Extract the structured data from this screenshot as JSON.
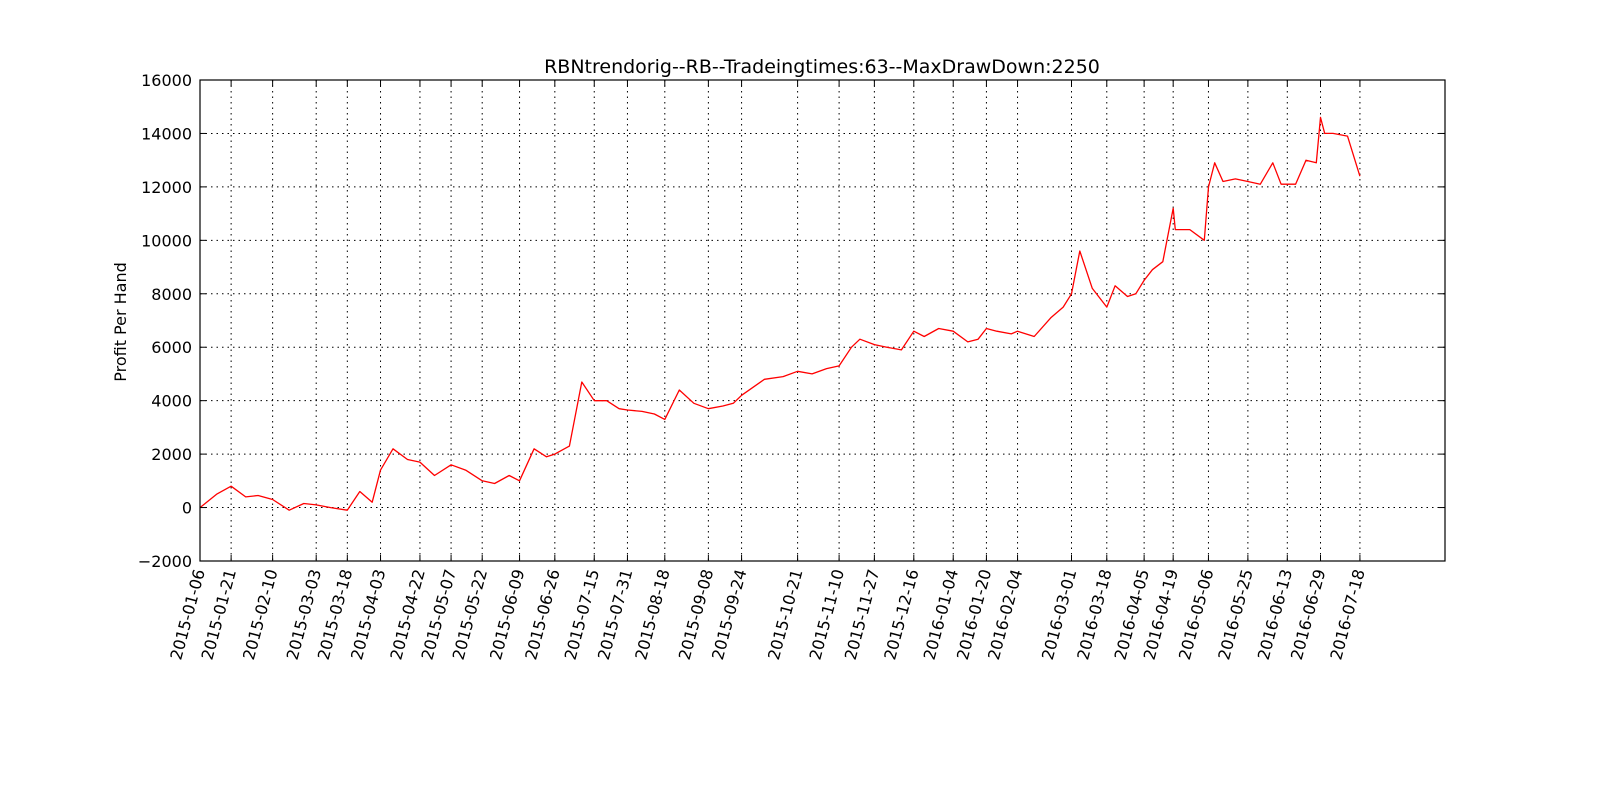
{
  "chart_data": {
    "type": "line",
    "title": "RBNtrendorig--RB--Tradeingtimes:63--MaxDrawDown:2250",
    "xlabel": "",
    "ylabel": "Profit Per Hand",
    "ylim": [
      -2000,
      16000
    ],
    "yticks": [
      -2000,
      0,
      2000,
      4000,
      6000,
      8000,
      10000,
      12000,
      14000,
      16000
    ],
    "ytick_labels": [
      "−2000",
      "0",
      "2000",
      "4000",
      "6000",
      "8000",
      "10000",
      "12000",
      "14000",
      "16000"
    ],
    "xticks": [
      "2015-01-06",
      "2015-01-21",
      "2015-02-10",
      "2015-03-03",
      "2015-03-18",
      "2015-04-03",
      "2015-04-22",
      "2015-05-07",
      "2015-05-22",
      "2015-06-09",
      "2015-06-26",
      "2015-07-15",
      "2015-07-31",
      "2015-08-18",
      "2015-09-08",
      "2015-09-24",
      "2015-10-21",
      "2015-11-10",
      "2015-11-27",
      "2015-12-16",
      "2016-01-04",
      "2016-01-20",
      "2016-02-04",
      "2016-03-01",
      "2016-03-18",
      "2016-04-05",
      "2016-04-19",
      "2016-05-06",
      "2016-05-25",
      "2016-06-13",
      "2016-06-29",
      "2016-07-18"
    ],
    "grid": true,
    "line_color": "#ff0000",
    "series": [
      {
        "x": [
          "2015-01-06",
          "2015-01-14",
          "2015-01-21",
          "2015-01-28",
          "2015-02-03",
          "2015-02-10",
          "2015-02-18",
          "2015-02-25",
          "2015-03-03",
          "2015-03-10",
          "2015-03-18",
          "2015-03-24",
          "2015-03-30",
          "2015-04-03",
          "2015-04-09",
          "2015-04-16",
          "2015-04-22",
          "2015-04-29",
          "2015-05-07",
          "2015-05-14",
          "2015-05-22",
          "2015-05-28",
          "2015-06-04",
          "2015-06-09",
          "2015-06-16",
          "2015-06-22",
          "2015-06-26",
          "2015-07-03",
          "2015-07-09",
          "2015-07-15",
          "2015-07-21",
          "2015-07-27",
          "2015-07-31",
          "2015-08-07",
          "2015-08-13",
          "2015-08-18",
          "2015-08-25",
          "2015-09-01",
          "2015-09-08",
          "2015-09-15",
          "2015-09-20",
          "2015-09-24",
          "2015-10-05",
          "2015-10-14",
          "2015-10-21",
          "2015-10-28",
          "2015-11-04",
          "2015-11-10",
          "2015-11-16",
          "2015-11-20",
          "2015-11-27",
          "2015-12-03",
          "2015-12-10",
          "2015-12-16",
          "2015-12-21",
          "2015-12-28",
          "2016-01-04",
          "2016-01-11",
          "2016-01-16",
          "2016-01-20",
          "2016-01-25",
          "2016-02-01",
          "2016-02-04",
          "2016-02-12",
          "2016-02-20",
          "2016-02-26",
          "2016-03-01",
          "2016-03-05",
          "2016-03-11",
          "2016-03-18",
          "2016-03-22",
          "2016-03-28",
          "2016-04-01",
          "2016-04-05",
          "2016-04-09",
          "2016-04-14",
          "2016-04-19",
          "2016-04-20",
          "2016-04-27",
          "2016-05-04",
          "2016-05-06",
          "2016-05-09",
          "2016-05-13",
          "2016-05-19",
          "2016-05-25",
          "2016-05-31",
          "2016-06-06",
          "2016-06-10",
          "2016-06-13",
          "2016-06-17",
          "2016-06-22",
          "2016-06-27",
          "2016-06-29",
          "2016-07-01",
          "2016-07-05",
          "2016-07-12",
          "2016-07-18"
        ],
        "y": [
          0,
          500,
          800,
          400,
          450,
          300,
          -100,
          150,
          100,
          0,
          -100,
          600,
          200,
          1400,
          2200,
          1800,
          1700,
          1200,
          1600,
          1400,
          1000,
          900,
          1200,
          1000,
          2200,
          1900,
          2000,
          2300,
          4700,
          4000,
          4000,
          3700,
          3650,
          3600,
          3500,
          3300,
          4400,
          3900,
          3700,
          3800,
          3900,
          4200,
          4800,
          4900,
          5100,
          5000,
          5200,
          5300,
          6000,
          6300,
          6100,
          6000,
          5900,
          6600,
          6400,
          6700,
          6600,
          6200,
          6300,
          6700,
          6600,
          6500,
          6600,
          6400,
          7100,
          7500,
          8000,
          9600,
          8200,
          7500,
          8300,
          7900,
          8000,
          8500,
          8900,
          9200,
          11200,
          10400,
          10400,
          10000,
          12000,
          12900,
          12200,
          12300,
          12200,
          12100,
          12900,
          12100,
          12100,
          12100,
          13000,
          12900,
          14600,
          14000,
          14000,
          13900,
          12400
        ]
      }
    ]
  }
}
